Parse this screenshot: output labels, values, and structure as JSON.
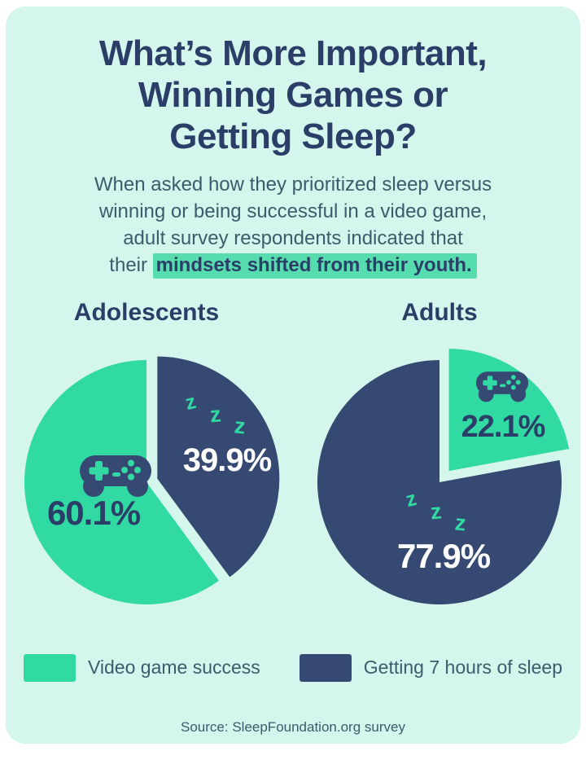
{
  "page": {
    "title": "What’s More Important,\nWinning Games or\nGetting Sleep?",
    "subtitle_plain": "When asked how they prioritized sleep versus\nwinning or being successful in a video game,\nadult survey respondents indicated that\ntheir ",
    "subtitle_highlight": "mindsets shifted from their youth.",
    "source": "Source: SleepFoundation.org survey"
  },
  "colors": {
    "teal": "#31d9a3",
    "navy": "#354972",
    "navy_text": "#2b3e68",
    "slate_text": "#3e5a6c",
    "card_bg": "#d5f6ec",
    "page_bg": "#ffffff",
    "highlight_bg": "#56dcae",
    "white_text": "#ffffff"
  },
  "chart_data": [
    {
      "type": "pie",
      "title": "Adolescents",
      "units": "percent",
      "start_angle_deg": 0,
      "direction": "clockwise",
      "slices": [
        {
          "label": "Getting 7 hours of sleep",
          "value": 39.9,
          "display": "39.9%",
          "color": "navy",
          "exploded": true,
          "icon": "zzz-icon"
        },
        {
          "label": "Video game success",
          "value": 60.1,
          "display": "60.1%",
          "color": "teal",
          "exploded": false,
          "icon": "gamepad-icon"
        }
      ]
    },
    {
      "type": "pie",
      "title": "Adults",
      "units": "percent",
      "start_angle_deg": 0,
      "direction": "clockwise",
      "slices": [
        {
          "label": "Video game success",
          "value": 22.1,
          "display": "22.1%",
          "color": "teal",
          "exploded": true,
          "icon": "gamepad-icon"
        },
        {
          "label": "Getting 7 hours of sleep",
          "value": 77.9,
          "display": "77.9%",
          "color": "navy",
          "exploded": false,
          "icon": "zzz-icon"
        }
      ]
    }
  ],
  "legend": [
    {
      "label": "Video game success",
      "color": "teal"
    },
    {
      "label": "Getting 7 hours of sleep",
      "color": "navy"
    }
  ],
  "zzz_letters": [
    "z",
    "z",
    "z"
  ]
}
